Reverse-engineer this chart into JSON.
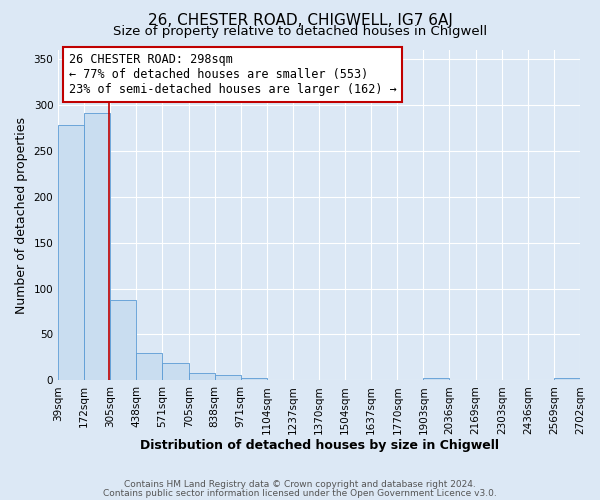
{
  "title": "26, CHESTER ROAD, CHIGWELL, IG7 6AJ",
  "subtitle": "Size of property relative to detached houses in Chigwell",
  "xlabel": "Distribution of detached houses by size in Chigwell",
  "ylabel": "Number of detached properties",
  "bar_edges": [
    39,
    172,
    305,
    438,
    571,
    705,
    838,
    971,
    1104,
    1237,
    1370,
    1504,
    1637,
    1770,
    1903,
    2036,
    2169,
    2303,
    2436,
    2569,
    2702
  ],
  "bar_heights": [
    278,
    291,
    88,
    30,
    19,
    8,
    6,
    3,
    0,
    0,
    0,
    0,
    0,
    0,
    2,
    0,
    0,
    0,
    0,
    2
  ],
  "bar_color": "#c9ddf0",
  "bar_edge_color": "#5b9bd5",
  "vline_x": 298,
  "vline_color": "#c00000",
  "annotation_line1": "26 CHESTER ROAD: 298sqm",
  "annotation_line2": "← 77% of detached houses are smaller (553)",
  "annotation_line3": "23% of semi-detached houses are larger (162) →",
  "annotation_box_facecolor": "white",
  "annotation_box_edgecolor": "#c00000",
  "ylim": [
    0,
    360
  ],
  "yticks": [
    0,
    50,
    100,
    150,
    200,
    250,
    300,
    350
  ],
  "background_color": "#dce8f5",
  "plot_bg_color": "#dce8f5",
  "footer_line1": "Contains HM Land Registry data © Crown copyright and database right 2024.",
  "footer_line2": "Contains public sector information licensed under the Open Government Licence v3.0.",
  "title_fontsize": 11,
  "subtitle_fontsize": 9.5,
  "xlabel_fontsize": 9,
  "ylabel_fontsize": 9,
  "tick_fontsize": 7.5,
  "footer_fontsize": 6.5,
  "annotation_fontsize": 8.5
}
